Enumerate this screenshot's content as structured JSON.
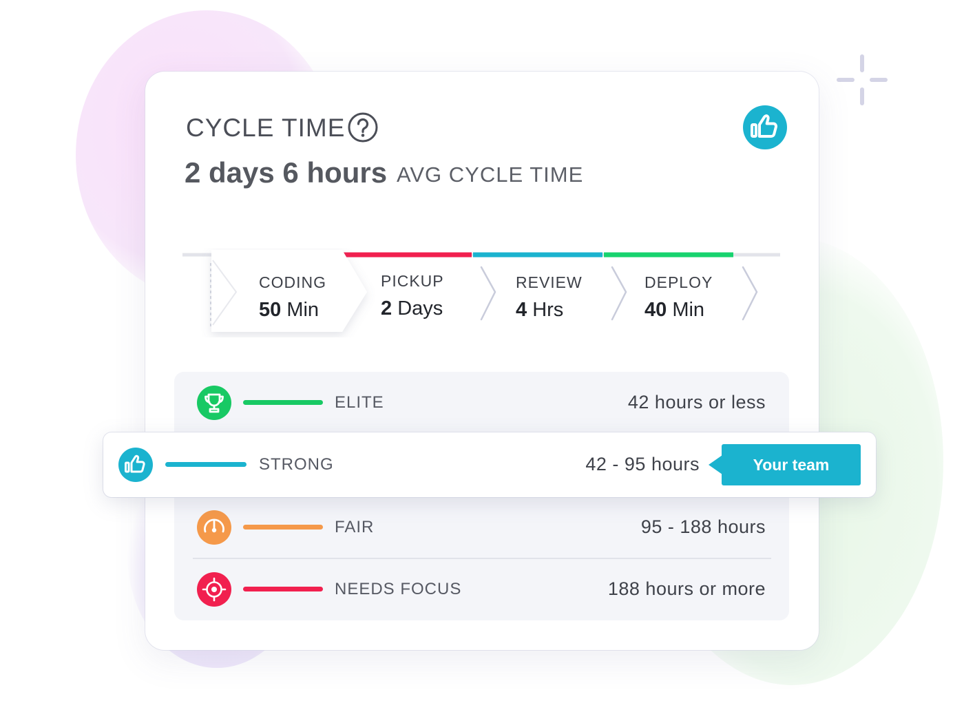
{
  "header": {
    "title": "CYCLE TIME",
    "avg_value": "2 days 6 hours",
    "avg_label": "AVG CYCLE TIME"
  },
  "icons": {
    "help": "help-circle-icon",
    "badge": "thumbs-up-icon",
    "decoration": "sparkle-icon"
  },
  "stages": [
    {
      "label": "CODING",
      "value_number": "50",
      "value_unit": "Min",
      "color": "#1bb3cf"
    },
    {
      "label": "PICKUP",
      "value_number": "2",
      "value_unit": "Days",
      "color": "#f1204f"
    },
    {
      "label": "REVIEW",
      "value_number": "4",
      "value_unit": "Hrs",
      "color": "#1bb3cf"
    },
    {
      "label": "DEPLOY",
      "value_number": "40",
      "value_unit": "Min",
      "color": "#18d36f"
    }
  ],
  "levels": {
    "elite": {
      "name": "ELITE",
      "range": "42 hours or less",
      "color": "#18c964",
      "icon": "trophy-icon"
    },
    "strong": {
      "name": "STRONG",
      "range": "42 - 95 hours",
      "color": "#1bb3cf",
      "icon": "thumbs-up-icon"
    },
    "fair": {
      "name": "FAIR",
      "range": "95 - 188 hours",
      "color": "#f5994a",
      "icon": "gauge-icon"
    },
    "needs_focus": {
      "name": "NEEDS FOCUS",
      "range": "188 hours or more",
      "color": "#f1204f",
      "icon": "target-icon"
    }
  },
  "team_tag": "Your team"
}
